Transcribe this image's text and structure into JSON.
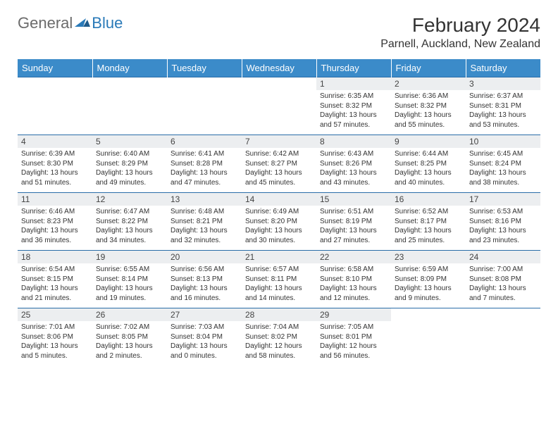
{
  "logo": {
    "general": "General",
    "blue": "Blue"
  },
  "title": "February 2024",
  "location": "Parnell, Auckland, New Zealand",
  "header_bg": "#3b8bc9",
  "row_border": "#2a6da8",
  "daynum_bg": "#eceef0",
  "weekdays": [
    "Sunday",
    "Monday",
    "Tuesday",
    "Wednesday",
    "Thursday",
    "Friday",
    "Saturday"
  ],
  "weeks": [
    [
      null,
      null,
      null,
      null,
      {
        "num": "1",
        "sunrise": "Sunrise: 6:35 AM",
        "sunset": "Sunset: 8:32 PM",
        "daylight": "Daylight: 13 hours and 57 minutes."
      },
      {
        "num": "2",
        "sunrise": "Sunrise: 6:36 AM",
        "sunset": "Sunset: 8:32 PM",
        "daylight": "Daylight: 13 hours and 55 minutes."
      },
      {
        "num": "3",
        "sunrise": "Sunrise: 6:37 AM",
        "sunset": "Sunset: 8:31 PM",
        "daylight": "Daylight: 13 hours and 53 minutes."
      }
    ],
    [
      {
        "num": "4",
        "sunrise": "Sunrise: 6:39 AM",
        "sunset": "Sunset: 8:30 PM",
        "daylight": "Daylight: 13 hours and 51 minutes."
      },
      {
        "num": "5",
        "sunrise": "Sunrise: 6:40 AM",
        "sunset": "Sunset: 8:29 PM",
        "daylight": "Daylight: 13 hours and 49 minutes."
      },
      {
        "num": "6",
        "sunrise": "Sunrise: 6:41 AM",
        "sunset": "Sunset: 8:28 PM",
        "daylight": "Daylight: 13 hours and 47 minutes."
      },
      {
        "num": "7",
        "sunrise": "Sunrise: 6:42 AM",
        "sunset": "Sunset: 8:27 PM",
        "daylight": "Daylight: 13 hours and 45 minutes."
      },
      {
        "num": "8",
        "sunrise": "Sunrise: 6:43 AM",
        "sunset": "Sunset: 8:26 PM",
        "daylight": "Daylight: 13 hours and 43 minutes."
      },
      {
        "num": "9",
        "sunrise": "Sunrise: 6:44 AM",
        "sunset": "Sunset: 8:25 PM",
        "daylight": "Daylight: 13 hours and 40 minutes."
      },
      {
        "num": "10",
        "sunrise": "Sunrise: 6:45 AM",
        "sunset": "Sunset: 8:24 PM",
        "daylight": "Daylight: 13 hours and 38 minutes."
      }
    ],
    [
      {
        "num": "11",
        "sunrise": "Sunrise: 6:46 AM",
        "sunset": "Sunset: 8:23 PM",
        "daylight": "Daylight: 13 hours and 36 minutes."
      },
      {
        "num": "12",
        "sunrise": "Sunrise: 6:47 AM",
        "sunset": "Sunset: 8:22 PM",
        "daylight": "Daylight: 13 hours and 34 minutes."
      },
      {
        "num": "13",
        "sunrise": "Sunrise: 6:48 AM",
        "sunset": "Sunset: 8:21 PM",
        "daylight": "Daylight: 13 hours and 32 minutes."
      },
      {
        "num": "14",
        "sunrise": "Sunrise: 6:49 AM",
        "sunset": "Sunset: 8:20 PM",
        "daylight": "Daylight: 13 hours and 30 minutes."
      },
      {
        "num": "15",
        "sunrise": "Sunrise: 6:51 AM",
        "sunset": "Sunset: 8:19 PM",
        "daylight": "Daylight: 13 hours and 27 minutes."
      },
      {
        "num": "16",
        "sunrise": "Sunrise: 6:52 AM",
        "sunset": "Sunset: 8:17 PM",
        "daylight": "Daylight: 13 hours and 25 minutes."
      },
      {
        "num": "17",
        "sunrise": "Sunrise: 6:53 AM",
        "sunset": "Sunset: 8:16 PM",
        "daylight": "Daylight: 13 hours and 23 minutes."
      }
    ],
    [
      {
        "num": "18",
        "sunrise": "Sunrise: 6:54 AM",
        "sunset": "Sunset: 8:15 PM",
        "daylight": "Daylight: 13 hours and 21 minutes."
      },
      {
        "num": "19",
        "sunrise": "Sunrise: 6:55 AM",
        "sunset": "Sunset: 8:14 PM",
        "daylight": "Daylight: 13 hours and 19 minutes."
      },
      {
        "num": "20",
        "sunrise": "Sunrise: 6:56 AM",
        "sunset": "Sunset: 8:13 PM",
        "daylight": "Daylight: 13 hours and 16 minutes."
      },
      {
        "num": "21",
        "sunrise": "Sunrise: 6:57 AM",
        "sunset": "Sunset: 8:11 PM",
        "daylight": "Daylight: 13 hours and 14 minutes."
      },
      {
        "num": "22",
        "sunrise": "Sunrise: 6:58 AM",
        "sunset": "Sunset: 8:10 PM",
        "daylight": "Daylight: 13 hours and 12 minutes."
      },
      {
        "num": "23",
        "sunrise": "Sunrise: 6:59 AM",
        "sunset": "Sunset: 8:09 PM",
        "daylight": "Daylight: 13 hours and 9 minutes."
      },
      {
        "num": "24",
        "sunrise": "Sunrise: 7:00 AM",
        "sunset": "Sunset: 8:08 PM",
        "daylight": "Daylight: 13 hours and 7 minutes."
      }
    ],
    [
      {
        "num": "25",
        "sunrise": "Sunrise: 7:01 AM",
        "sunset": "Sunset: 8:06 PM",
        "daylight": "Daylight: 13 hours and 5 minutes."
      },
      {
        "num": "26",
        "sunrise": "Sunrise: 7:02 AM",
        "sunset": "Sunset: 8:05 PM",
        "daylight": "Daylight: 13 hours and 2 minutes."
      },
      {
        "num": "27",
        "sunrise": "Sunrise: 7:03 AM",
        "sunset": "Sunset: 8:04 PM",
        "daylight": "Daylight: 13 hours and 0 minutes."
      },
      {
        "num": "28",
        "sunrise": "Sunrise: 7:04 AM",
        "sunset": "Sunset: 8:02 PM",
        "daylight": "Daylight: 12 hours and 58 minutes."
      },
      {
        "num": "29",
        "sunrise": "Sunrise: 7:05 AM",
        "sunset": "Sunset: 8:01 PM",
        "daylight": "Daylight: 12 hours and 56 minutes."
      },
      null,
      null
    ]
  ]
}
